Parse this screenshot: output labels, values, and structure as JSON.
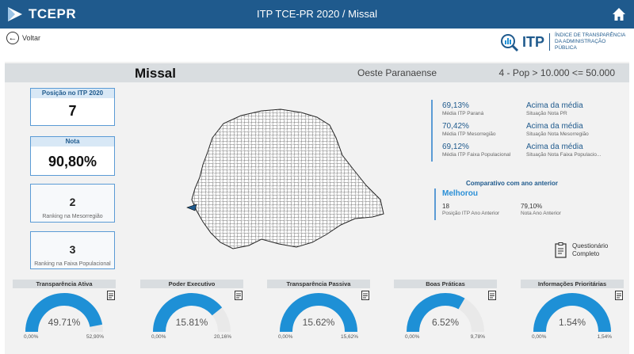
{
  "header": {
    "logo_text": "TCEPR",
    "title": "ITP TCE-PR 2020 / Missal",
    "home_icon": "home-icon"
  },
  "nav": {
    "back_label": "Voltar",
    "brand_short": "ITP",
    "brand_desc": "ÍNDICE DE TRANSPARÊNCIA DA ADMINISTRAÇÃO PÚBLICA"
  },
  "municipality": {
    "name": "Missal",
    "region": "Oeste Paranaense",
    "pop_range": "4 - Pop > 10.000 <= 50.000"
  },
  "cards": {
    "position": {
      "label": "Posição no ITP 2020",
      "value": "7"
    },
    "grade": {
      "label": "Nota",
      "value": "90,80%"
    },
    "rank_meso": {
      "value": "2",
      "label": "Ranking na Mesorregião"
    },
    "rank_pop": {
      "value": "3",
      "label": "Ranking na Faixa Populacional"
    }
  },
  "stats": [
    {
      "value": "69,13%",
      "label": "Média ITP Paraná",
      "status": "Acima da média",
      "status_label": "Situação Nota PR"
    },
    {
      "value": "70,42%",
      "label": "Média ITP Mesorregião",
      "status": "Acima da média",
      "status_label": "Situação Nota Mesorregião"
    },
    {
      "value": "69,12%",
      "label": "Média ITP Faixa Populacional",
      "status": "Acima da média",
      "status_label": "Situação Nota Faixa Populacio..."
    }
  ],
  "comparison": {
    "title": "Comparativo com ano anterior",
    "status": "Melhorou",
    "prev_position": "18",
    "prev_position_label": "Posição ITP Ano Anterior",
    "prev_grade": "79,10%",
    "prev_grade_label": "Nota Ano Anterior"
  },
  "questionnaire": {
    "line1": "Questionário",
    "line2": "Completo"
  },
  "gauges": [
    {
      "title": "Transparência Ativa",
      "value": "49.71%",
      "min": "0,00%",
      "max": "52,90%",
      "fraction": 0.9397
    },
    {
      "title": "Poder Executivo",
      "value": "15.81%",
      "min": "0,00%",
      "max": "20,16%",
      "fraction": 0.7842
    },
    {
      "title": "Transparência Passiva",
      "value": "15.62%",
      "min": "0,00%",
      "max": "15,62%",
      "fraction": 1.0
    },
    {
      "title": "Boas Práticas",
      "value": "6.52%",
      "min": "0,00%",
      "max": "9,78%",
      "fraction": 0.6667
    },
    {
      "title": "Informações Prioritárias",
      "value": "1.54%",
      "min": "0,00%",
      "max": "1,54%",
      "fraction": 1.0
    }
  ],
  "colors": {
    "brand": "#1f5a8d",
    "gauge_fill": "#1e90d6",
    "gauge_track": "#e9e9e9"
  }
}
